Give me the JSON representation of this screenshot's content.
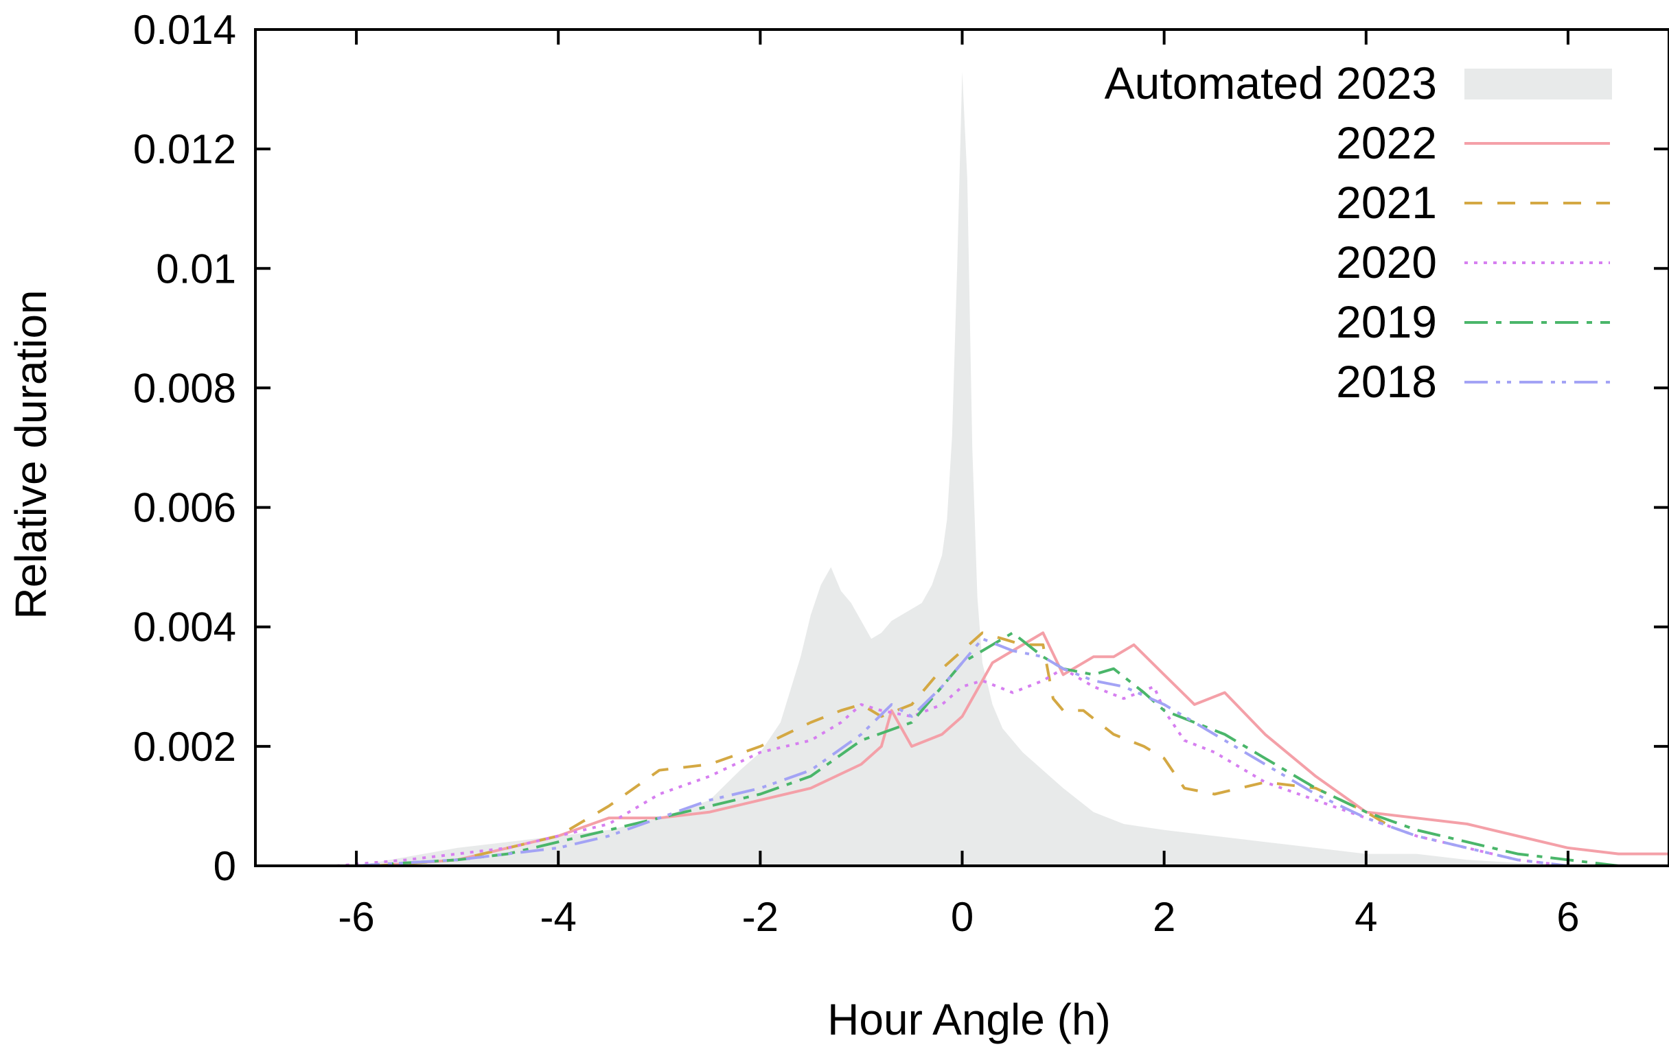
{
  "chart_data": {
    "type": "line",
    "xlabel": "Hour Angle (h)",
    "ylabel": "Relative duration",
    "xlim": [
      -7,
      7
    ],
    "ylim": [
      0,
      0.014
    ],
    "xticks": [
      -6,
      -4,
      -2,
      0,
      2,
      4,
      6
    ],
    "xtick_labels": [
      "-6",
      "-4",
      "-2",
      "0",
      "2",
      "4",
      "6"
    ],
    "yticks": [
      0,
      0.002,
      0.004,
      0.006,
      0.008,
      0.01,
      0.012,
      0.014
    ],
    "ytick_labels": [
      "0",
      "0.002",
      "0.004",
      "0.006",
      "0.008",
      "0.01",
      "0.012",
      "0.014"
    ],
    "grid": false,
    "legend_position": "top-right",
    "series": [
      {
        "name": "Automated 2023",
        "style": "filled-area",
        "color": "#e8eaea",
        "x": [
          -6.0,
          -5.0,
          -4.5,
          -4.0,
          -3.5,
          -3.0,
          -2.5,
          -2.2,
          -2.0,
          -1.8,
          -1.6,
          -1.5,
          -1.4,
          -1.3,
          -1.2,
          -1.1,
          -1.0,
          -0.9,
          -0.8,
          -0.7,
          -0.6,
          -0.5,
          -0.4,
          -0.3,
          -0.2,
          -0.15,
          -0.1,
          -0.05,
          0.0,
          0.05,
          0.1,
          0.15,
          0.2,
          0.3,
          0.4,
          0.5,
          0.6,
          0.8,
          1.0,
          1.3,
          1.6,
          2.0,
          2.5,
          3.0,
          3.5,
          4.0,
          4.5,
          5.0,
          6.0
        ],
        "y": [
          0.0,
          0.0003,
          0.0004,
          0.0005,
          0.0006,
          0.0008,
          0.0011,
          0.0016,
          0.0019,
          0.0024,
          0.0035,
          0.0042,
          0.0047,
          0.005,
          0.0046,
          0.0044,
          0.0041,
          0.0038,
          0.0039,
          0.0041,
          0.0042,
          0.0043,
          0.0044,
          0.0047,
          0.0052,
          0.0058,
          0.0072,
          0.01,
          0.0133,
          0.0115,
          0.007,
          0.0045,
          0.0034,
          0.0027,
          0.0023,
          0.0021,
          0.0019,
          0.0016,
          0.0013,
          0.0009,
          0.0007,
          0.0006,
          0.0005,
          0.0004,
          0.0003,
          0.0002,
          0.0002,
          0.0001,
          0.0
        ]
      },
      {
        "name": "2022",
        "style": "solid",
        "color": "#f4a0a8",
        "x": [
          -5.8,
          -5.0,
          -4.5,
          -4.0,
          -3.5,
          -3.0,
          -2.5,
          -2.0,
          -1.5,
          -1.0,
          -0.8,
          -0.7,
          -0.5,
          -0.2,
          0.0,
          0.3,
          0.5,
          0.8,
          1.0,
          1.3,
          1.5,
          1.7,
          2.0,
          2.3,
          2.6,
          3.0,
          3.5,
          4.0,
          4.5,
          5.0,
          5.5,
          6.0,
          6.5,
          7.0
        ],
        "y": [
          0.0,
          0.0001,
          0.0003,
          0.0005,
          0.0008,
          0.0008,
          0.0009,
          0.0011,
          0.0013,
          0.0017,
          0.002,
          0.0026,
          0.002,
          0.0022,
          0.0025,
          0.0034,
          0.0036,
          0.0039,
          0.0032,
          0.0035,
          0.0035,
          0.0037,
          0.0032,
          0.0027,
          0.0029,
          0.0022,
          0.0015,
          0.0009,
          0.0008,
          0.0007,
          0.0005,
          0.0003,
          0.0002,
          0.0002
        ]
      },
      {
        "name": "2021",
        "style": "dashed",
        "color": "#d4a843",
        "x": [
          -5.8,
          -5.0,
          -4.5,
          -4.0,
          -3.5,
          -3.0,
          -2.5,
          -2.0,
          -1.5,
          -1.2,
          -1.0,
          -0.8,
          -0.5,
          -0.2,
          0.0,
          0.2,
          0.4,
          0.6,
          0.8,
          0.9,
          1.0,
          1.2,
          1.5,
          1.8,
          2.0,
          2.2,
          2.5,
          3.0,
          3.5,
          4.0,
          4.2
        ],
        "y": [
          0.0,
          0.0001,
          0.0003,
          0.0005,
          0.001,
          0.0016,
          0.0017,
          0.002,
          0.0024,
          0.0026,
          0.0027,
          0.0025,
          0.0027,
          0.0033,
          0.0036,
          0.0039,
          0.0038,
          0.0037,
          0.0037,
          0.0028,
          0.0026,
          0.0026,
          0.0022,
          0.002,
          0.0018,
          0.0013,
          0.0012,
          0.0014,
          0.0013,
          0.0009,
          0.0007
        ]
      },
      {
        "name": "2020",
        "style": "dotted",
        "color": "#d67ff0",
        "x": [
          -6.2,
          -5.5,
          -5.0,
          -4.5,
          -4.0,
          -3.5,
          -3.0,
          -2.5,
          -2.0,
          -1.5,
          -1.2,
          -1.0,
          -0.8,
          -0.5,
          -0.2,
          0.0,
          0.2,
          0.5,
          0.8,
          1.0,
          1.3,
          1.6,
          1.9,
          2.0,
          2.2,
          2.5,
          3.0,
          3.5,
          4.0,
          4.5,
          5.0,
          5.5,
          6.0
        ],
        "y": [
          0.0,
          0.0001,
          0.0002,
          0.0003,
          0.0005,
          0.0007,
          0.0012,
          0.0015,
          0.0019,
          0.0021,
          0.0024,
          0.0027,
          0.0026,
          0.0025,
          0.0027,
          0.003,
          0.0031,
          0.0029,
          0.0031,
          0.0033,
          0.003,
          0.0028,
          0.003,
          0.0026,
          0.0021,
          0.0019,
          0.0014,
          0.0011,
          0.0008,
          0.0005,
          0.0003,
          0.0001,
          0.0
        ]
      },
      {
        "name": "2019",
        "style": "dash-dot",
        "color": "#4ab66a",
        "x": [
          -6.0,
          -5.0,
          -4.5,
          -4.0,
          -3.5,
          -3.0,
          -2.5,
          -2.0,
          -1.5,
          -1.0,
          -0.5,
          -0.2,
          0.0,
          0.3,
          0.5,
          0.8,
          1.0,
          1.3,
          1.5,
          1.8,
          2.0,
          2.3,
          2.6,
          3.0,
          3.5,
          4.0,
          4.5,
          5.0,
          5.5,
          6.0,
          6.5,
          7.0
        ],
        "y": [
          0.0,
          0.0001,
          0.0002,
          0.0004,
          0.0006,
          0.0008,
          0.001,
          0.0012,
          0.0015,
          0.0021,
          0.0024,
          0.003,
          0.0034,
          0.0037,
          0.0039,
          0.0035,
          0.0033,
          0.0032,
          0.0033,
          0.0029,
          0.0026,
          0.0024,
          0.0022,
          0.0018,
          0.0013,
          0.0009,
          0.0006,
          0.0004,
          0.0002,
          0.0001,
          0.0,
          0.0
        ]
      },
      {
        "name": "2018",
        "style": "dash-dot-dot",
        "color": "#a3a3f5",
        "x": [
          -6.0,
          -5.0,
          -4.5,
          -4.0,
          -3.5,
          -3.0,
          -2.5,
          -2.0,
          -1.5,
          -1.0,
          -0.7,
          -0.5,
          -0.2,
          0.0,
          0.2,
          0.5,
          0.8,
          1.0,
          1.3,
          1.6,
          2.0,
          2.3,
          2.6,
          3.0,
          3.5,
          4.0,
          4.5,
          5.0,
          5.5,
          6.0
        ],
        "y": [
          0.0,
          0.0001,
          0.0002,
          0.0003,
          0.0005,
          0.0008,
          0.0011,
          0.0013,
          0.0016,
          0.0022,
          0.0027,
          0.0025,
          0.003,
          0.0034,
          0.0038,
          0.0036,
          0.0035,
          0.0033,
          0.0031,
          0.003,
          0.0027,
          0.0024,
          0.0021,
          0.0017,
          0.0012,
          0.0008,
          0.0005,
          0.0003,
          0.0001,
          0.0
        ]
      }
    ]
  }
}
